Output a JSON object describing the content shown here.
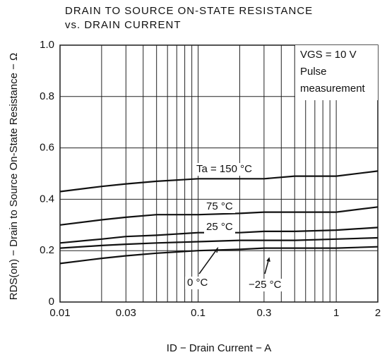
{
  "chart_data": {
    "type": "line",
    "title": [
      "DRAIN TO SOURCE ON-STATE RESISTANCE",
      "vs. DRAIN CURRENT"
    ],
    "x_label": "ID − Drain Current − A",
    "y_label": "RDS(on) − Drain to Source On-State Resistance − Ω",
    "annotation": [
      "VGS = 10 V",
      "Pulse",
      "measurement"
    ],
    "x": [
      0.01,
      0.02,
      0.03,
      0.05,
      0.1,
      0.2,
      0.3,
      0.5,
      1,
      2
    ],
    "series": [
      {
        "name": "Ta = 150 °C",
        "color": "#111",
        "values": [
          0.43,
          0.45,
          0.46,
          0.47,
          0.48,
          0.48,
          0.48,
          0.49,
          0.49,
          0.51
        ]
      },
      {
        "name": "75 °C",
        "color": "#111",
        "values": [
          0.3,
          0.32,
          0.33,
          0.34,
          0.34,
          0.345,
          0.35,
          0.35,
          0.35,
          0.37
        ]
      },
      {
        "name": "25 °C",
        "color": "#111",
        "values": [
          0.23,
          0.245,
          0.255,
          0.26,
          0.27,
          0.27,
          0.275,
          0.275,
          0.28,
          0.29
        ]
      },
      {
        "name": "0 °C",
        "color": "#111",
        "values": [
          0.21,
          0.22,
          0.225,
          0.23,
          0.235,
          0.24,
          0.24,
          0.24,
          0.245,
          0.25
        ]
      },
      {
        "name": "−25 °C",
        "color": "#111",
        "values": [
          0.15,
          0.17,
          0.18,
          0.19,
          0.2,
          0.205,
          0.21,
          0.21,
          0.21,
          0.215
        ]
      }
    ],
    "xscale": "log",
    "xlim": [
      0.01,
      2
    ],
    "xticks": [
      0.01,
      0.03,
      0.1,
      0.3,
      1,
      2
    ],
    "xgrid": [
      0.01,
      0.02,
      0.03,
      0.04,
      0.05,
      0.06,
      0.07,
      0.08,
      0.09,
      0.1,
      0.2,
      0.3,
      0.4,
      0.5,
      0.6,
      0.7,
      0.8,
      0.9,
      1,
      2
    ],
    "ylim": [
      0,
      1
    ],
    "yticks": [
      0,
      0.2,
      0.4,
      0.6,
      0.8,
      {
        "value": 1,
        "label": "1.0"
      }
    ],
    "grid": true
  }
}
